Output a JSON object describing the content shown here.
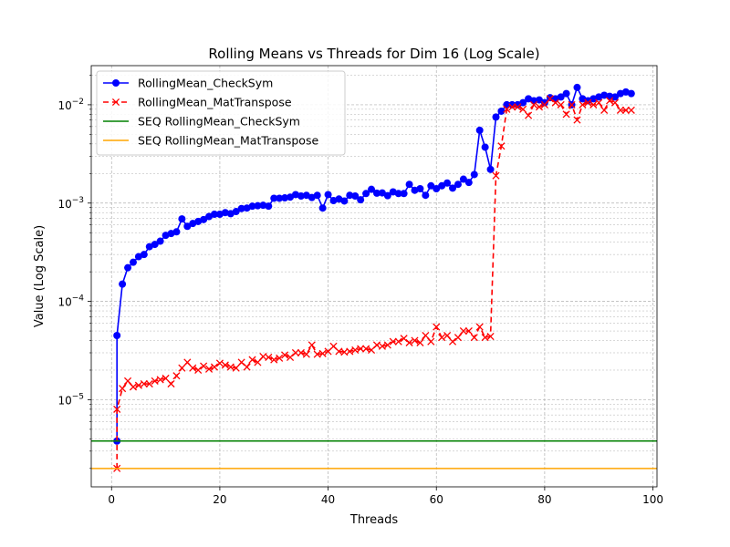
{
  "chart_data": {
    "type": "line",
    "title": "Rolling Means vs Threads for Dim 16 (Log Scale)",
    "xlabel": "Threads",
    "ylabel": "Value (Log Scale)",
    "xlim": [
      -3.75,
      100.75
    ],
    "ylim": [
      1.3e-06,
      0.025
    ],
    "yscale": "log",
    "grid": true,
    "legend_position": "top-left",
    "x_ticks": [
      0,
      20,
      40,
      60,
      80,
      100
    ],
    "x_tick_labels": [
      "0",
      "20",
      "40",
      "60",
      "80",
      "100"
    ],
    "y_ticks": [
      1e-05,
      0.0001,
      0.001,
      0.01
    ],
    "y_tick_labels": [
      {
        "base": "10",
        "exp": "−5"
      },
      {
        "base": "10",
        "exp": "−4"
      },
      {
        "base": "10",
        "exp": "−3"
      },
      {
        "base": "10",
        "exp": "−2"
      }
    ],
    "x": [
      1,
      1,
      2,
      3,
      4,
      5,
      6,
      7,
      8,
      9,
      10,
      11,
      12,
      13,
      14,
      15,
      16,
      17,
      18,
      19,
      20,
      21,
      22,
      23,
      24,
      25,
      26,
      27,
      28,
      29,
      30,
      31,
      32,
      33,
      34,
      35,
      36,
      37,
      38,
      39,
      40,
      41,
      42,
      43,
      44,
      45,
      46,
      47,
      48,
      49,
      50,
      51,
      52,
      53,
      54,
      55,
      56,
      57,
      58,
      59,
      60,
      61,
      62,
      63,
      64,
      65,
      66,
      67,
      68,
      69,
      70,
      71,
      72,
      73,
      74,
      75,
      76,
      77,
      78,
      79,
      80,
      81,
      82,
      83,
      84,
      85,
      86,
      87,
      88,
      89,
      90,
      91,
      92,
      93,
      94,
      95,
      96
    ],
    "series": [
      {
        "name": "RollingMean_CheckSym",
        "color": "#0000ff",
        "linestyle": "solid",
        "marker": "circle",
        "values": [
          3.8e-06,
          4.5e-05,
          0.00015,
          0.00022,
          0.00025,
          0.000285,
          0.0003,
          0.00036,
          0.00038,
          0.00041,
          0.00047,
          0.00049,
          0.00051,
          0.00069,
          0.00058,
          0.00062,
          0.00065,
          0.00068,
          0.00073,
          0.00077,
          0.00077,
          0.0008,
          0.00078,
          0.00082,
          0.00088,
          0.00089,
          0.00093,
          0.00094,
          0.00095,
          0.00093,
          0.00112,
          0.00112,
          0.00113,
          0.00115,
          0.00122,
          0.00118,
          0.0012,
          0.00114,
          0.0012,
          0.00089,
          0.00122,
          0.00106,
          0.0011,
          0.00105,
          0.0012,
          0.00118,
          0.00108,
          0.00125,
          0.00138,
          0.00126,
          0.00127,
          0.00119,
          0.0013,
          0.00125,
          0.00125,
          0.00155,
          0.00135,
          0.0014,
          0.0012,
          0.0015,
          0.0014,
          0.0015,
          0.0016,
          0.00142,
          0.00155,
          0.00175,
          0.00162,
          0.00195,
          0.0055,
          0.0037,
          0.0022,
          0.0075,
          0.0086,
          0.01,
          0.01,
          0.01,
          0.0105,
          0.0115,
          0.011,
          0.0112,
          0.0105,
          0.0118,
          0.0115,
          0.012,
          0.013,
          0.01,
          0.015,
          0.0115,
          0.011,
          0.0115,
          0.012,
          0.0125,
          0.0122,
          0.012,
          0.013,
          0.0135,
          0.013
        ]
      },
      {
        "name": "RollingMean_MatTranspose",
        "color": "#ff0000",
        "linestyle": "dashed",
        "marker": "x",
        "values": [
          2e-06,
          8e-06,
          1.3e-05,
          1.55e-05,
          1.35e-05,
          1.4e-05,
          1.45e-05,
          1.45e-05,
          1.55e-05,
          1.6e-05,
          1.65e-05,
          1.45e-05,
          1.75e-05,
          2.1e-05,
          2.4e-05,
          2.1e-05,
          2e-05,
          2.2e-05,
          2.05e-05,
          2.15e-05,
          2.35e-05,
          2.25e-05,
          2.15e-05,
          2.1e-05,
          2.4e-05,
          2.15e-05,
          2.55e-05,
          2.4e-05,
          2.75e-05,
          2.7e-05,
          2.55e-05,
          2.65e-05,
          2.85e-05,
          2.7e-05,
          3e-05,
          3e-05,
          2.9e-05,
          3.6e-05,
          2.9e-05,
          2.95e-05,
          3.1e-05,
          3.5e-05,
          3.1e-05,
          3.05e-05,
          3.1e-05,
          3.2e-05,
          3.3e-05,
          3.3e-05,
          3.2e-05,
          3.6e-05,
          3.5e-05,
          3.6e-05,
          3.9e-05,
          3.9e-05,
          4.2e-05,
          3.8e-05,
          4e-05,
          3.8e-05,
          4.5e-05,
          3.9e-05,
          5.5e-05,
          4.3e-05,
          4.5e-05,
          3.9e-05,
          4.3e-05,
          5e-05,
          5e-05,
          4.3e-05,
          5.5e-05,
          4.3e-05,
          4.4e-05,
          0.0019,
          0.0038,
          0.009,
          0.0095,
          0.0095,
          0.009,
          0.0078,
          0.01,
          0.0095,
          0.01,
          0.0115,
          0.0105,
          0.01,
          0.008,
          0.01,
          0.007,
          0.01,
          0.0105,
          0.01,
          0.0105,
          0.0088,
          0.011,
          0.0105,
          0.0088,
          0.0088,
          0.0088
        ]
      },
      {
        "name": "SEQ RollingMean_CheckSym",
        "color": "#008000",
        "linestyle": "solid",
        "marker": "none",
        "constant": 3.8e-06
      },
      {
        "name": "SEQ RollingMean_MatTranspose",
        "color": "#ffa500",
        "linestyle": "solid",
        "marker": "none",
        "constant": 2e-06
      }
    ]
  }
}
